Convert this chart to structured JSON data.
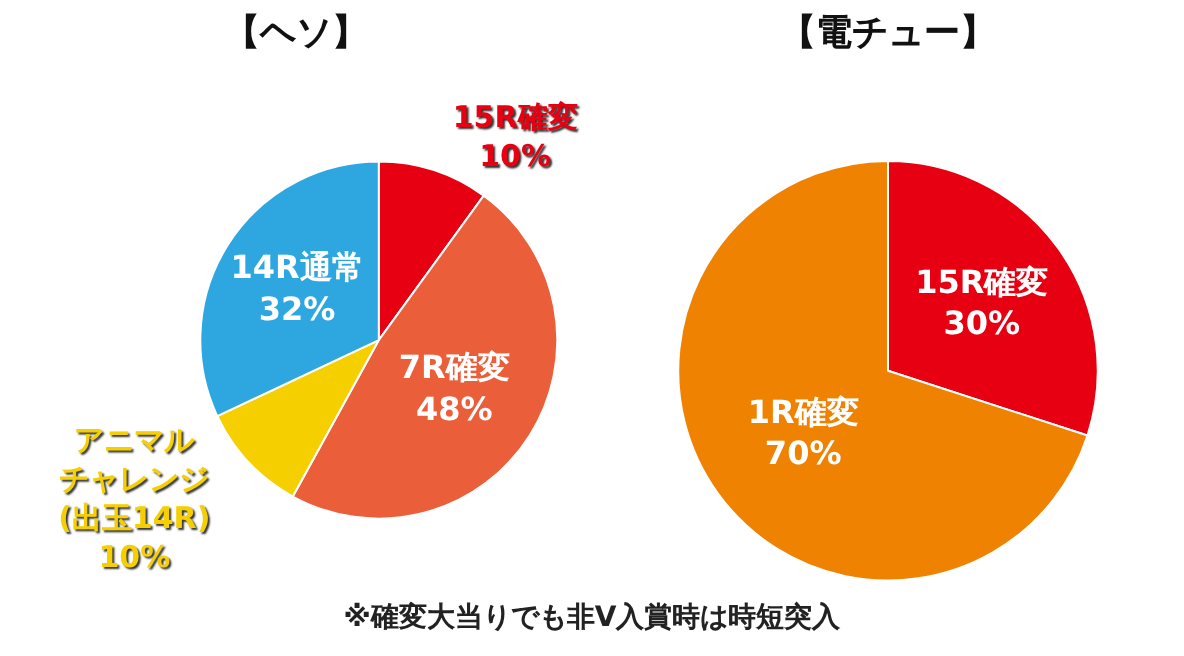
{
  "chart_data": [
    {
      "type": "pie",
      "title": "【ヘソ】",
      "categories": [
        "15R確変",
        "7R確変",
        "アニマルチャレンジ(出玉14R)",
        "14R通常"
      ],
      "values": [
        10,
        48,
        10,
        32
      ],
      "value_labels": [
        "10%",
        "48%",
        "10%",
        "32%"
      ],
      "colors": [
        "#e60012",
        "#ea5f3a",
        "#f5cf00",
        "#2ea7e0"
      ],
      "legend": false
    },
    {
      "type": "pie",
      "title": "【電チュー】",
      "categories": [
        "15R確変",
        "1R確変"
      ],
      "values": [
        30,
        70
      ],
      "value_labels": [
        "30%",
        "70%"
      ],
      "colors": [
        "#e60012",
        "#ef8200"
      ],
      "legend": false,
      "annotations": [
        "※確変大当りでも非V入賞時は時短突入"
      ]
    }
  ]
}
